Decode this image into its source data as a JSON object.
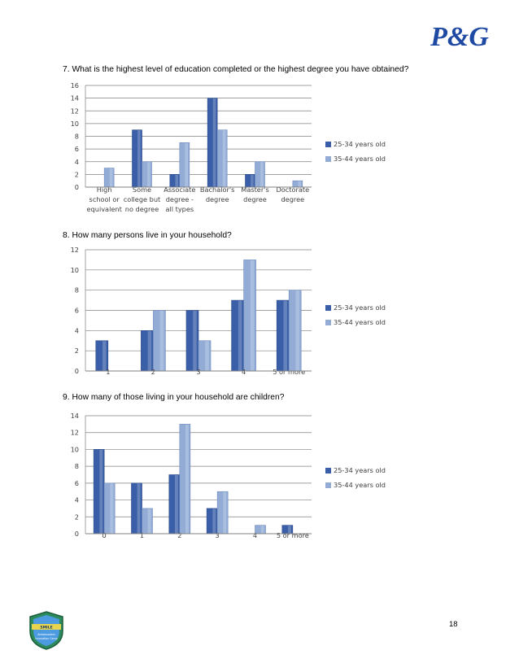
{
  "page": {
    "logo_text": "P&G",
    "page_number": "18",
    "badge_text": [
      "SMILE",
      "Ambassadors",
      "Innovation Camp"
    ]
  },
  "colors": {
    "series_1": "#3a5fa8",
    "series_2": "#93acd6",
    "axis": "#808080",
    "tick_text": "#404040",
    "logo": "#1f4aa3"
  },
  "chart_data": [
    {
      "type": "bar",
      "title": "7.   What is the highest level of education completed or the highest degree you have obtained?",
      "categories": [
        [
          "High",
          "school or",
          "equivalent"
        ],
        [
          "Some",
          "college but",
          "no degree"
        ],
        [
          "Associate",
          "degree -",
          "all types"
        ],
        [
          "Bachalor's",
          "degree"
        ],
        [
          "Master's",
          "degree"
        ],
        [
          "Doctorate",
          "degree"
        ]
      ],
      "series": [
        {
          "name": "25-34 years old",
          "values": [
            0,
            9,
            2,
            14,
            2,
            0
          ]
        },
        {
          "name": "35-44 years old",
          "values": [
            3,
            4,
            7,
            9,
            4,
            1
          ]
        }
      ],
      "ylim": [
        0,
        16
      ],
      "yticks": [
        0,
        2,
        4,
        6,
        8,
        10,
        12,
        14,
        16
      ],
      "grid": true,
      "legend": "right"
    },
    {
      "type": "bar",
      "title": "8.   How many persons live in your household?",
      "categories": [
        [
          "1"
        ],
        [
          "2"
        ],
        [
          "3"
        ],
        [
          "4"
        ],
        [
          "5 or more"
        ]
      ],
      "series": [
        {
          "name": "25-34 years old",
          "values": [
            3,
            4,
            6,
            7,
            7
          ]
        },
        {
          "name": "35-44 years old",
          "values": [
            0,
            6,
            3,
            11,
            8
          ]
        }
      ],
      "ylim": [
        0,
        12
      ],
      "yticks": [
        0,
        2,
        4,
        6,
        8,
        10,
        12
      ],
      "grid": true,
      "legend": "right"
    },
    {
      "type": "bar",
      "title": "9.   How many of those living in your household are children?",
      "categories": [
        [
          "0"
        ],
        [
          "1"
        ],
        [
          "2"
        ],
        [
          "3"
        ],
        [
          "4"
        ],
        [
          "5 or more"
        ]
      ],
      "series": [
        {
          "name": "25-34 years old",
          "values": [
            10,
            6,
            7,
            3,
            0,
            1
          ]
        },
        {
          "name": "35-44 years old",
          "values": [
            6,
            3,
            13,
            5,
            1,
            0
          ]
        }
      ],
      "ylim": [
        0,
        14
      ],
      "yticks": [
        0,
        2,
        4,
        6,
        8,
        10,
        12,
        14
      ],
      "grid": true,
      "legend": "right"
    }
  ]
}
